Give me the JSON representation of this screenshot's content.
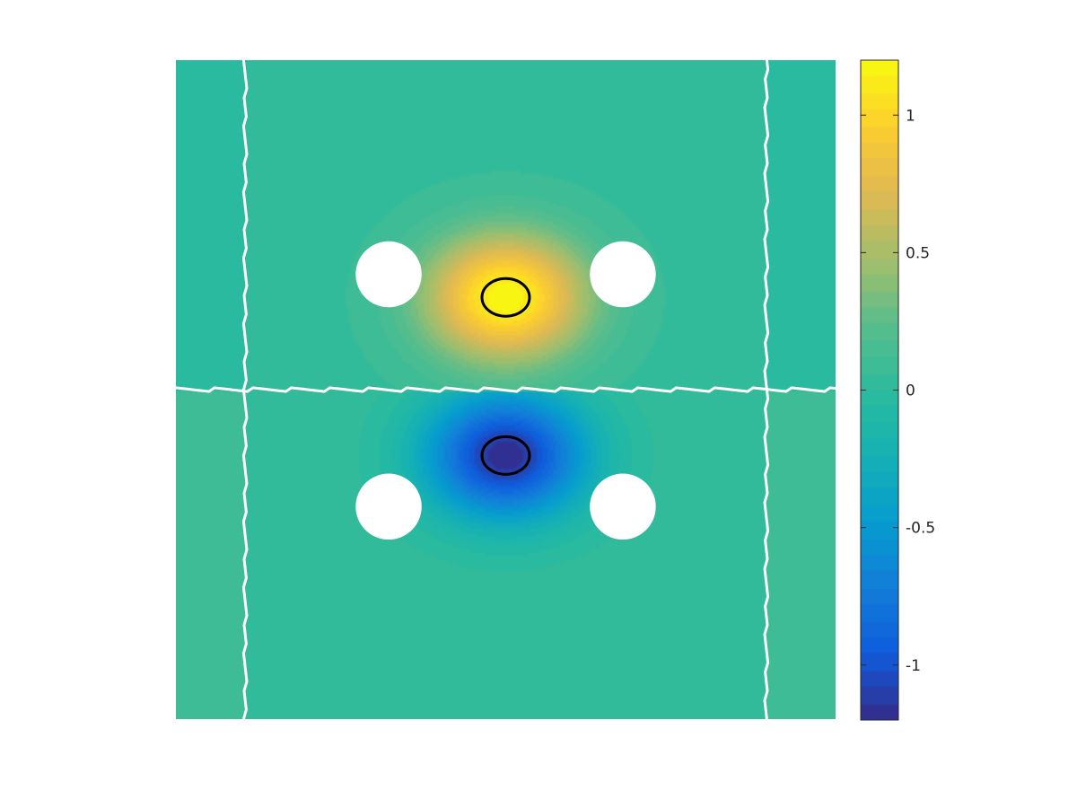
{
  "chart_data": {
    "type": "heatmap",
    "title": "",
    "xlabel": "",
    "ylabel": "",
    "axes_visible": false,
    "grid": false,
    "colormap": "parula",
    "color_range": [
      -1.2,
      1.2
    ],
    "colorbar": {
      "placement": "right",
      "ticks": [
        1,
        0.5,
        0,
        -0.5,
        -1
      ],
      "tick_labels": [
        "1",
        "0.5",
        "0",
        "-0.5",
        "-1"
      ]
    },
    "domain": {
      "x": [
        -1,
        1
      ],
      "y": [
        -1,
        1
      ]
    },
    "field_peaks": [
      {
        "kind": "maximum",
        "value": 1.2,
        "x": 0,
        "y": 0.28
      },
      {
        "kind": "minimum",
        "value": -1.2,
        "x": 0,
        "y": -0.2
      }
    ],
    "contour_level": 1.1,
    "holes": [
      {
        "x": -0.355,
        "y": 0.35,
        "r": 0.1
      },
      {
        "x": 0.355,
        "y": 0.35,
        "r": 0.1
      },
      {
        "x": -0.355,
        "y": -0.355,
        "r": 0.1
      },
      {
        "x": 0.355,
        "y": -0.355,
        "r": 0.1
      }
    ],
    "boundary_lines": [
      {
        "orientation": "vertical",
        "x": -0.79
      },
      {
        "orientation": "vertical",
        "x": 0.79
      },
      {
        "orientation": "horizontal",
        "y": 0
      }
    ],
    "colors": {
      "hole_fill": "#ffffff",
      "boundary_line": "#ffffff",
      "contour_line": "#000000"
    }
  }
}
